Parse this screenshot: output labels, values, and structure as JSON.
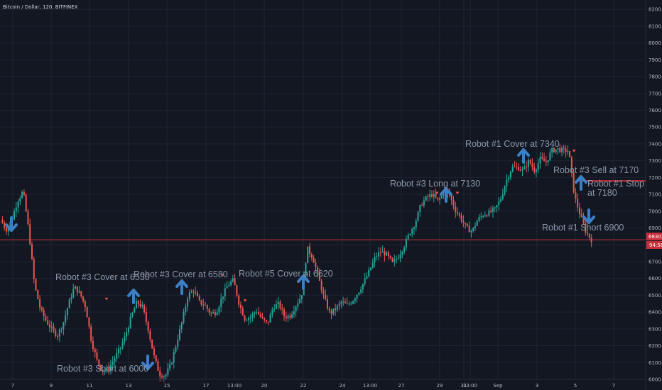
{
  "header": {
    "title": "Bitcoin / Dollar, 120, BITFINEX"
  },
  "colors": {
    "background": "#131722",
    "grid": "#1f2433",
    "up": "#26a69a",
    "down": "#ef5350",
    "arrow": "#3d7fc4",
    "level_line": "#c62f3b",
    "annotation_text": "#8a97a8"
  },
  "chart_data": {
    "type": "candlestick",
    "title": "Bitcoin / Dollar, 120, BITFINEX",
    "y_range": [
      5950,
      8200
    ],
    "y_ticks": [
      6000,
      6100,
      6200,
      6300,
      6400,
      6500,
      6600,
      6700,
      6800,
      6900,
      7000,
      7100,
      7200,
      7300,
      7400,
      7500,
      7600,
      7700,
      7800,
      7900,
      8000,
      8100,
      8200
    ],
    "x_ticks": [
      "7",
      "9",
      "11",
      "13",
      "15",
      "17",
      "13:00",
      "20",
      "22",
      "24",
      "13:00",
      "27",
      "29",
      "31",
      "13:00",
      "Sep",
      "3",
      "5",
      "7"
    ],
    "price_path": [
      6950,
      6890,
      6950,
      7060,
      7120,
      6880,
      6560,
      6420,
      6350,
      6300,
      6260,
      6330,
      6450,
      6550,
      6510,
      6430,
      6230,
      6110,
      6050,
      6060,
      6120,
      6180,
      6260,
      6370,
      6460,
      6430,
      6300,
      6140,
      6030,
      6020,
      6090,
      6220,
      6350,
      6500,
      6530,
      6460,
      6440,
      6390,
      6400,
      6490,
      6560,
      6590,
      6450,
      6360,
      6370,
      6410,
      6360,
      6330,
      6430,
      6450,
      6370,
      6380,
      6440,
      6500,
      6780,
      6720,
      6600,
      6480,
      6390,
      6420,
      6460,
      6440,
      6470,
      6520,
      6580,
      6650,
      6730,
      6760,
      6740,
      6690,
      6730,
      6790,
      6870,
      6930,
      7040,
      7080,
      7100,
      7060,
      7110,
      7100,
      7010,
      6960,
      6900,
      6880,
      6950,
      6980,
      6990,
      7010,
      7070,
      7180,
      7260,
      7260,
      7240,
      7300,
      7240,
      7310,
      7290,
      7360,
      7370,
      7360,
      7360,
      7090,
      6980,
      6880,
      6830
    ],
    "current_price": {
      "label": "6830.0",
      "value": 6830
    },
    "countdown_label": "94:58",
    "horizontal_levels": [
      6830,
      7180
    ],
    "signals": [
      {
        "text": "Robot #3 Short at 6000",
        "price": 6000,
        "direction": "down"
      },
      {
        "text": "Robot #3 Cover at 6530",
        "price": 6530,
        "direction": "up"
      },
      {
        "text": "Robot #3 Cover at 6580",
        "price": 6580,
        "direction": "up"
      },
      {
        "text": "Robot #5 Cover at 6620",
        "price": 6620,
        "direction": "up"
      },
      {
        "text": "Robot #3 Long at 7130",
        "price": 7130,
        "direction": "up"
      },
      {
        "text": "Robot #1 Cover at 7340",
        "price": 7340,
        "direction": "up"
      },
      {
        "text": "Robot #3 Sell at 7170",
        "price": 7170,
        "direction": "down"
      },
      {
        "text": "Robot #1 Stop",
        "price": 7180,
        "direction": "up"
      },
      {
        "text": "at 7180",
        "price": 7180,
        "direction": "up"
      },
      {
        "text": "Robot #1 Short 6900",
        "price": 6900,
        "direction": "down"
      }
    ]
  }
}
